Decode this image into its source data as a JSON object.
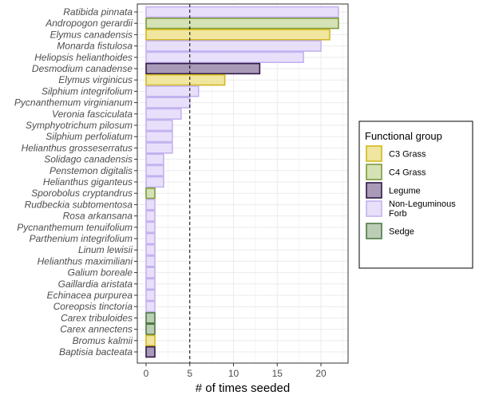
{
  "chart_data": {
    "type": "bar",
    "orientation": "horizontal",
    "title": "",
    "xlabel": "# of times seeded",
    "ylabel": "",
    "xlim": [
      0,
      22.5
    ],
    "xticks": [
      0,
      5,
      10,
      15,
      20
    ],
    "reference_line": {
      "x": 5,
      "style": "dashed"
    },
    "grid": true,
    "legend": {
      "title": "Functional group",
      "position": "right",
      "entries": [
        {
          "key": "c3",
          "label": "C3 Grass",
          "fill": "#f0e6a0",
          "stroke": "#d4b81e"
        },
        {
          "key": "c4",
          "label": "C4 Grass",
          "fill": "#d5e2b6",
          "stroke": "#7c9a3c"
        },
        {
          "key": "legume",
          "label": "Legume",
          "fill": "#a99ab8",
          "stroke": "#2e1a47"
        },
        {
          "key": "forb",
          "label": "Non-Leguminous Forb",
          "fill": "#e8e0fa",
          "stroke": "#c3b2ef"
        },
        {
          "key": "sedge",
          "label": "Sedge",
          "fill": "#bccdb6",
          "stroke": "#4f7a43"
        }
      ]
    },
    "bars": [
      {
        "species": "Ratibida pinnata",
        "value": 22,
        "group": "forb"
      },
      {
        "species": "Andropogon gerardii",
        "value": 22,
        "group": "c4"
      },
      {
        "species": "Elymus canadensis",
        "value": 21,
        "group": "c3"
      },
      {
        "species": "Monarda fistulosa",
        "value": 20,
        "group": "forb"
      },
      {
        "species": "Heliopsis helianthoides",
        "value": 18,
        "group": "forb"
      },
      {
        "species": "Desmodium canadense",
        "value": 13,
        "group": "legume"
      },
      {
        "species": "Elymus virginicus",
        "value": 9,
        "group": "c3"
      },
      {
        "species": "Silphium integrifolium",
        "value": 6,
        "group": "forb"
      },
      {
        "species": "Pycnanthemum virginianum",
        "value": 5,
        "group": "forb"
      },
      {
        "species": "Veronia fasciculata",
        "value": 4,
        "group": "forb"
      },
      {
        "species": "Symphyotrichum pilosum",
        "value": 3,
        "group": "forb"
      },
      {
        "species": "Silphium perfoliatum",
        "value": 3,
        "group": "forb"
      },
      {
        "species": "Helianthus grosseserratus",
        "value": 3,
        "group": "forb"
      },
      {
        "species": "Solidago canadensis",
        "value": 2,
        "group": "forb"
      },
      {
        "species": "Penstemon digitalis",
        "value": 2,
        "group": "forb"
      },
      {
        "species": "Helianthus giganteus",
        "value": 2,
        "group": "forb"
      },
      {
        "species": "Sporobolus cryptandrus",
        "value": 1,
        "group": "c4"
      },
      {
        "species": "Rudbeckia subtomentosa",
        "value": 1,
        "group": "forb"
      },
      {
        "species": "Rosa arkansana",
        "value": 1,
        "group": "forb"
      },
      {
        "species": "Pycnanthemum tenuifolium",
        "value": 1,
        "group": "forb"
      },
      {
        "species": "Parthenium integrifolium",
        "value": 1,
        "group": "forb"
      },
      {
        "species": "Linum lewisii",
        "value": 1,
        "group": "forb"
      },
      {
        "species": "Helianthus maximiliani",
        "value": 1,
        "group": "forb"
      },
      {
        "species": "Galium boreale",
        "value": 1,
        "group": "forb"
      },
      {
        "species": "Gaillardia aristata",
        "value": 1,
        "group": "forb"
      },
      {
        "species": "Echinacea purpurea",
        "value": 1,
        "group": "forb"
      },
      {
        "species": "Coreopsis tinctoria",
        "value": 1,
        "group": "forb"
      },
      {
        "species": "Carex tribuloides",
        "value": 1,
        "group": "sedge"
      },
      {
        "species": "Carex annectens",
        "value": 1,
        "group": "sedge"
      },
      {
        "species": "Bromus kalmii",
        "value": 1,
        "group": "c3"
      },
      {
        "species": "Baptisia bacteata",
        "value": 1,
        "group": "legume"
      }
    ]
  }
}
